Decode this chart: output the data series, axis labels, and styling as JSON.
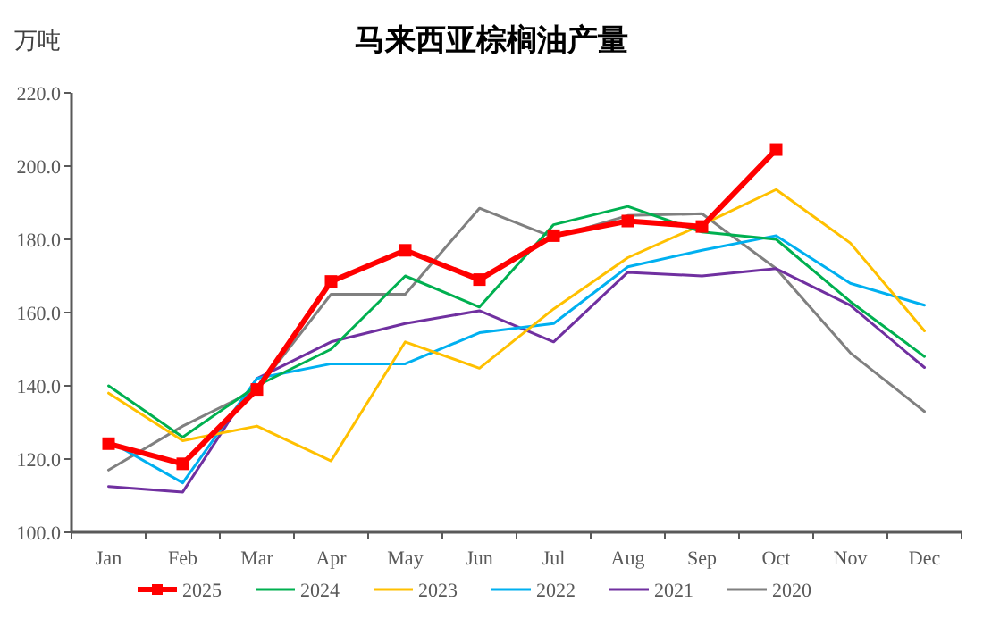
{
  "chart_data": {
    "type": "line",
    "title": "马来西亚棕榈油产量",
    "ylabel": "万吨",
    "categories": [
      "Jan",
      "Feb",
      "Mar",
      "Apr",
      "May",
      "Jun",
      "Jul",
      "Aug",
      "Sep",
      "Oct",
      "Nov",
      "Dec"
    ],
    "ylim": [
      100,
      220
    ],
    "yticks": [
      {
        "value": 100,
        "label": "100.0"
      },
      {
        "value": 120,
        "label": "120.0"
      },
      {
        "value": 140,
        "label": "140.0"
      },
      {
        "value": 160,
        "label": "160.0"
      },
      {
        "value": 180,
        "label": "180.0"
      },
      {
        "value": 200,
        "label": "200.0"
      },
      {
        "value": 220,
        "label": "220.0"
      }
    ],
    "grid": false,
    "legend": "bottom",
    "series": [
      {
        "name": "2025",
        "color": "#ff0000",
        "marker": "square",
        "values": [
          124.2,
          118.7,
          139,
          168.5,
          177,
          169,
          181,
          185,
          183.5,
          204.5,
          null,
          null
        ]
      },
      {
        "name": "2024",
        "color": "#00b050",
        "values": [
          140,
          126,
          140,
          150,
          170,
          161.5,
          184,
          189,
          182,
          180,
          163,
          148
        ]
      },
      {
        "name": "2023",
        "color": "#ffc000",
        "values": [
          138,
          125,
          129,
          119.5,
          152,
          144.8,
          161,
          175,
          184,
          193.6,
          179,
          155
        ]
      },
      {
        "name": "2022",
        "color": "#00b0f0",
        "values": [
          125,
          113.5,
          142,
          146,
          146,
          154.5,
          157,
          172.5,
          177,
          181,
          168,
          162
        ]
      },
      {
        "name": "2021",
        "color": "#7030a0",
        "values": [
          112.5,
          111,
          142,
          152,
          157,
          160.5,
          152,
          171,
          170,
          172,
          162,
          145
        ]
      },
      {
        "name": "2020",
        "color": "#808080",
        "values": [
          117,
          129,
          139,
          165,
          165,
          188.5,
          180.5,
          186.5,
          187,
          172,
          149,
          133
        ]
      }
    ]
  }
}
